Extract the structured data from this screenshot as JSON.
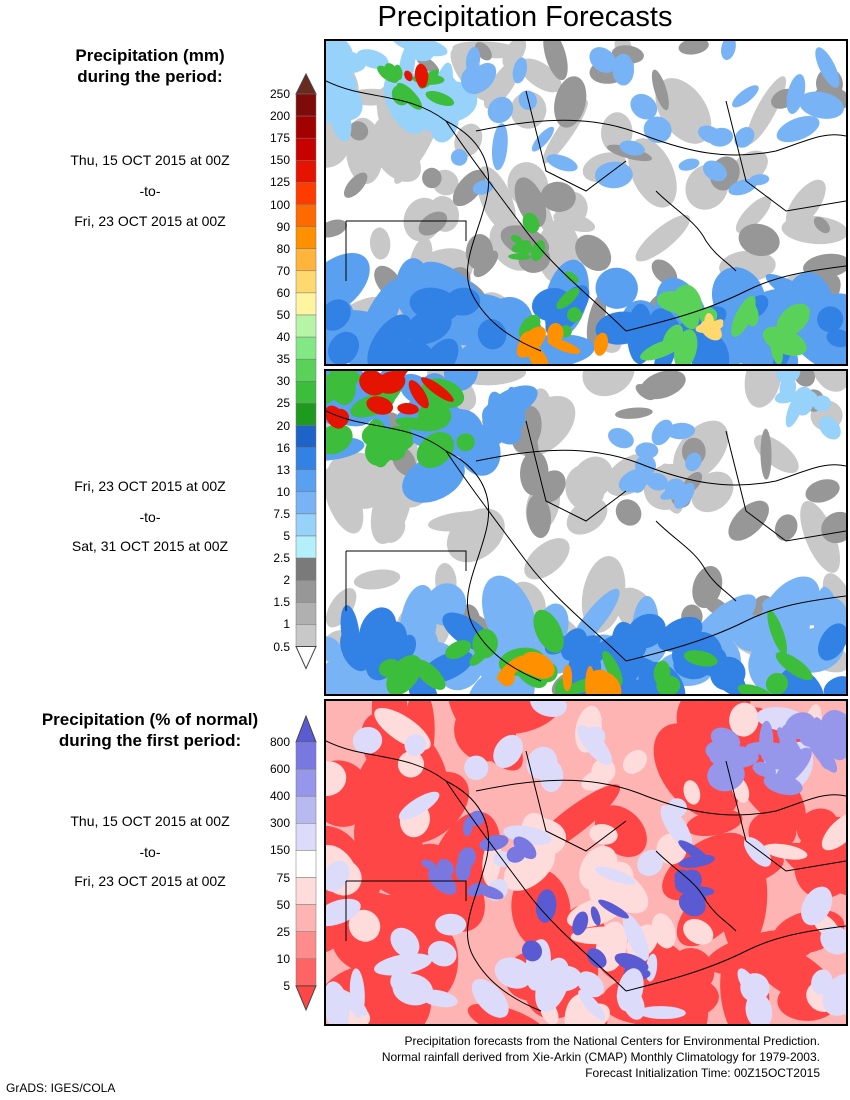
{
  "page_title": "Precipitation Forecasts",
  "mm_legend": {
    "heading_line1": "Precipitation (mm)",
    "heading_line2": "during the period:",
    "levels": [
      "250",
      "200",
      "175",
      "150",
      "125",
      "100",
      "90",
      "80",
      "70",
      "60",
      "50",
      "40",
      "35",
      "30",
      "25",
      "20",
      "16",
      "13",
      "10",
      "7.5",
      "5",
      "2.5",
      "2",
      "1.5",
      "1",
      "0.5"
    ],
    "colors": [
      "#6b2a1e",
      "#7e0a0a",
      "#a30000",
      "#c70000",
      "#e51400",
      "#ff3c00",
      "#ff6a00",
      "#ff9100",
      "#ffb53c",
      "#ffd86e",
      "#fff5a0",
      "#b6f5a6",
      "#82e886",
      "#5ad25a",
      "#3cbe3c",
      "#1e9b1e",
      "#1e64c8",
      "#3282e6",
      "#5aa0f0",
      "#78b4f5",
      "#96d2fa",
      "#b4f0fa",
      "#7a7a7a",
      "#979797",
      "#b0b0b0",
      "#c8c8c8"
    ]
  },
  "period_one": {
    "start": "Thu, 15 OCT 2015 at 00Z",
    "sep": "-to-",
    "end": "Fri, 23 OCT 2015 at 00Z"
  },
  "period_two": {
    "start": "Fri, 23 OCT 2015 at 00Z",
    "sep": "-to-",
    "end": "Sat, 31 OCT 2015 at 00Z"
  },
  "pct_legend": {
    "heading_line1": "Precipitation (% of normal)",
    "heading_line2": "during the first period:",
    "levels": [
      "800",
      "600",
      "400",
      "300",
      "150",
      "75",
      "50",
      "25",
      "10",
      "5"
    ],
    "colors": [
      "#5a5ad2",
      "#7878e0",
      "#9696eb",
      "#b9b9f2",
      "#dcdcfa",
      "#ffffff",
      "#ffdcdc",
      "#ffb4b4",
      "#ff8c8c",
      "#ff6464",
      "#ff4646"
    ]
  },
  "period_three": {
    "start": "Thu, 15 OCT 2015 at 00Z",
    "sep": "-to-",
    "end": "Fri, 23 OCT 2015 at 00Z"
  },
  "footer": {
    "line1": "Precipitation forecasts from the National Centers for Environmental Prediction.",
    "line2": "Normal rainfall derived from Xie-Arkin (CMAP) Monthly Climatology for 1979-2003.",
    "line3": "Forecast Initialization Time: 00Z15OCT2015"
  },
  "credit": "GrADS: IGES/COLA",
  "colors": {
    "land_outline": "#000000",
    "map_bg": "#ffffff"
  }
}
